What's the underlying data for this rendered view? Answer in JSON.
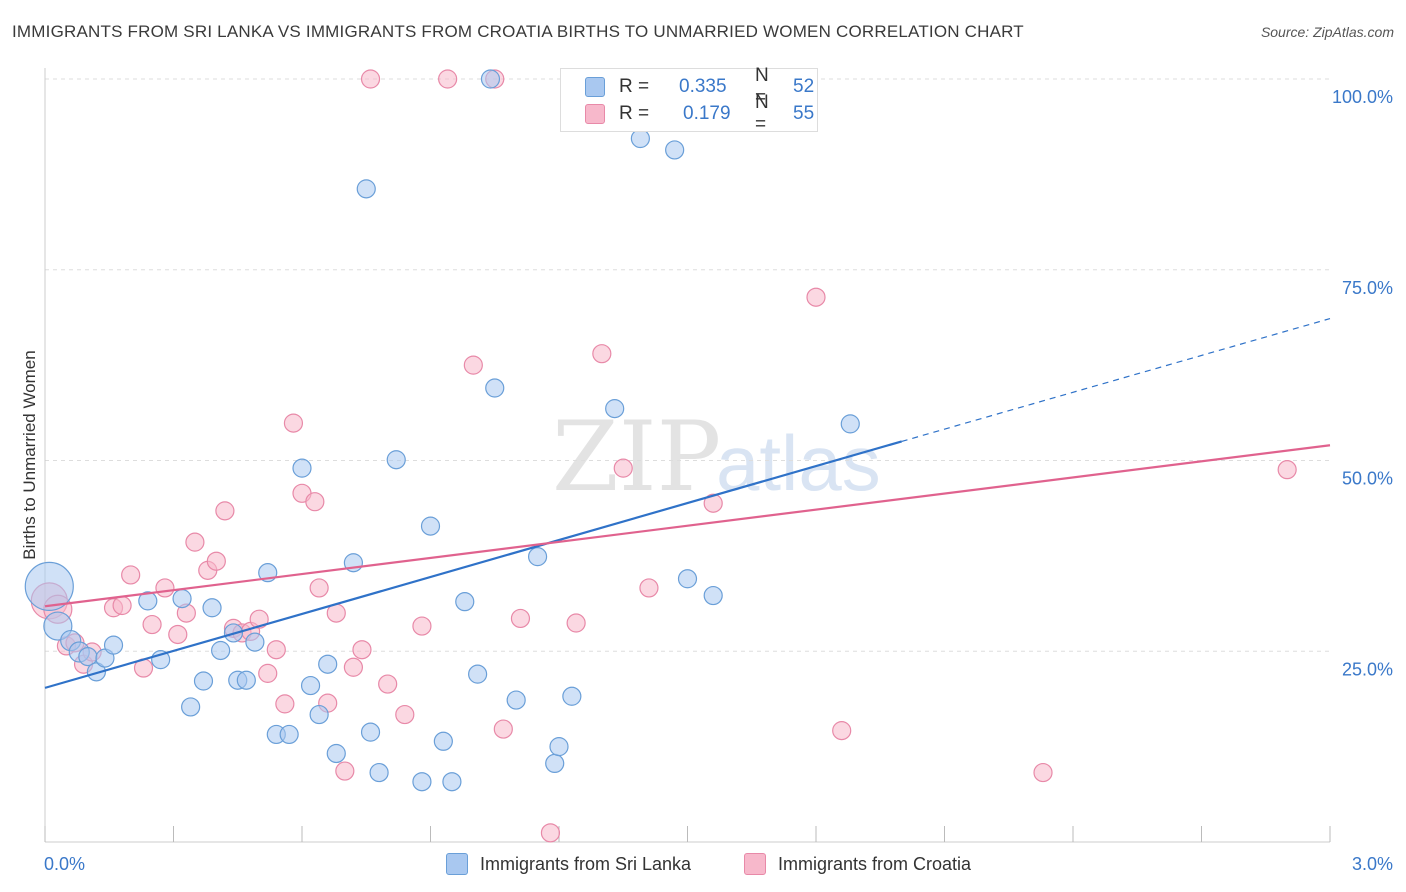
{
  "header": {
    "title": "IMMIGRANTS FROM SRI LANKA VS IMMIGRANTS FROM CROATIA BIRTHS TO UNMARRIED WOMEN CORRELATION CHART",
    "source": "Source: ZipAtlas.com"
  },
  "watermark": {
    "zip": "ZIP",
    "atlas": "atlas"
  },
  "legend": {
    "r_label": "R =",
    "n_label": "N =",
    "rows": [
      {
        "r": "0.335",
        "n": "52",
        "color": "#a9c8f0"
      },
      {
        "r": "0.179",
        "n": "55",
        "color": "#f7b8cb"
      }
    ]
  },
  "bottom_legend": {
    "sri_lanka": "Immigrants from Sri Lanka",
    "croatia": "Immigrants from Croatia"
  },
  "colors": {
    "sri_lanka_fill": "#a9c8f0",
    "sri_lanka_stroke": "#6a9fd8",
    "sri_lanka_line": "#2f72c8",
    "croatia_fill": "#f7b8cb",
    "croatia_stroke": "#e889a8",
    "croatia_line": "#e0628e",
    "axis_text": "#3a78c9",
    "grid": "#dddddd"
  },
  "chart_data": {
    "type": "scatter",
    "title": "IMMIGRANTS FROM SRI LANKA VS IMMIGRANTS FROM CROATIA BIRTHS TO UNMARRIED WOMEN CORRELATION CHART",
    "xlabel": "",
    "ylabel": "Births to Unmarried Women",
    "x_tick_labels": [
      "0.0%",
      "3.0%"
    ],
    "y_tick_labels": [
      "25.0%",
      "50.0%",
      "75.0%",
      "100.0%"
    ],
    "xlim": [
      0,
      3.0
    ],
    "ylim": [
      0,
      100
    ],
    "grid": true,
    "legend_position": "top-center",
    "series": [
      {
        "name": "Immigrants from Sri Lanka",
        "r": 0.335,
        "n": 52,
        "trend": {
          "x0": 0.0,
          "y0": 20.2,
          "x1": 2.0,
          "y1": 52.5,
          "dash_to_x": 3.0,
          "dash_to_y": 68.6
        },
        "points": [
          [
            0.01,
            33.5,
            24
          ],
          [
            0.03,
            28.3,
            14
          ],
          [
            0.06,
            26.4,
            10
          ],
          [
            0.08,
            24.9,
            10
          ],
          [
            0.1,
            24.3,
            9
          ],
          [
            0.12,
            22.3,
            9
          ],
          [
            0.14,
            24.1,
            9
          ],
          [
            0.16,
            25.8,
            9
          ],
          [
            0.24,
            31.6,
            9
          ],
          [
            0.27,
            23.9,
            9
          ],
          [
            0.32,
            31.9,
            9
          ],
          [
            0.34,
            17.7,
            9
          ],
          [
            0.37,
            21.1,
            9
          ],
          [
            0.39,
            30.7,
            9
          ],
          [
            0.41,
            25.1,
            9
          ],
          [
            0.44,
            27.4,
            9
          ],
          [
            0.45,
            21.2,
            9
          ],
          [
            0.47,
            21.2,
            9
          ],
          [
            0.49,
            26.2,
            9
          ],
          [
            0.52,
            35.3,
            9
          ],
          [
            0.54,
            14.1,
            9
          ],
          [
            0.57,
            14.1,
            9
          ],
          [
            0.6,
            49.0,
            9
          ],
          [
            0.62,
            20.5,
            9
          ],
          [
            0.64,
            16.7,
            9
          ],
          [
            0.66,
            23.3,
            9
          ],
          [
            0.68,
            11.6,
            9
          ],
          [
            0.72,
            36.6,
            9
          ],
          [
            0.75,
            85.6,
            9
          ],
          [
            0.76,
            14.4,
            9
          ],
          [
            0.78,
            9.1,
            9
          ],
          [
            0.82,
            50.1,
            9
          ],
          [
            0.88,
            7.9,
            9
          ],
          [
            0.9,
            41.4,
            9
          ],
          [
            0.93,
            13.2,
            9
          ],
          [
            0.95,
            7.9,
            9
          ],
          [
            0.98,
            31.5,
            9
          ],
          [
            1.01,
            22.0,
            9
          ],
          [
            1.04,
            100.0,
            9
          ],
          [
            1.05,
            59.5,
            9
          ],
          [
            1.1,
            18.6,
            9
          ],
          [
            1.15,
            37.4,
            9
          ],
          [
            1.19,
            10.3,
            9
          ],
          [
            1.2,
            12.5,
            9
          ],
          [
            1.23,
            19.1,
            9
          ],
          [
            1.33,
            56.8,
            9
          ],
          [
            1.39,
            92.2,
            9
          ],
          [
            1.47,
            90.7,
            9
          ],
          [
            1.5,
            34.5,
            9
          ],
          [
            1.56,
            32.3,
            9
          ],
          [
            1.88,
            54.8,
            9
          ]
        ]
      },
      {
        "name": "Immigrants from Croatia",
        "r": 0.179,
        "n": 55,
        "trend": {
          "x0": 0.0,
          "y0": 30.9,
          "x1": 3.0,
          "y1": 52.0
        },
        "points": [
          [
            0.01,
            31.6,
            18
          ],
          [
            0.03,
            30.5,
            14
          ],
          [
            0.05,
            25.7,
            9
          ],
          [
            0.07,
            26.1,
            9
          ],
          [
            0.09,
            23.3,
            9
          ],
          [
            0.11,
            24.9,
            9
          ],
          [
            0.16,
            30.7,
            9
          ],
          [
            0.18,
            31.0,
            9
          ],
          [
            0.2,
            35.0,
            9
          ],
          [
            0.23,
            22.8,
            9
          ],
          [
            0.25,
            28.5,
            9
          ],
          [
            0.28,
            33.3,
            9
          ],
          [
            0.31,
            27.2,
            9
          ],
          [
            0.33,
            30.0,
            9
          ],
          [
            0.35,
            39.3,
            9
          ],
          [
            0.38,
            35.6,
            9
          ],
          [
            0.4,
            36.8,
            9
          ],
          [
            0.42,
            43.4,
            9
          ],
          [
            0.44,
            28.0,
            9
          ],
          [
            0.46,
            27.4,
            9
          ],
          [
            0.48,
            27.6,
            9
          ],
          [
            0.5,
            29.2,
            9
          ],
          [
            0.52,
            22.1,
            9
          ],
          [
            0.54,
            25.2,
            9
          ],
          [
            0.56,
            18.1,
            9
          ],
          [
            0.58,
            54.9,
            9
          ],
          [
            0.6,
            45.7,
            9
          ],
          [
            0.63,
            44.6,
            9
          ],
          [
            0.64,
            33.3,
            9
          ],
          [
            0.66,
            18.2,
            9
          ],
          [
            0.68,
            30.0,
            9
          ],
          [
            0.7,
            9.3,
            9
          ],
          [
            0.72,
            22.9,
            9
          ],
          [
            0.74,
            25.2,
            9
          ],
          [
            0.76,
            100.0,
            9
          ],
          [
            0.8,
            20.7,
            9
          ],
          [
            0.84,
            16.7,
            9
          ],
          [
            0.88,
            28.3,
            9
          ],
          [
            0.94,
            100.0,
            9
          ],
          [
            1.0,
            62.5,
            9
          ],
          [
            1.05,
            100.0,
            9
          ],
          [
            1.07,
            14.8,
            9
          ],
          [
            1.11,
            29.3,
            9
          ],
          [
            1.18,
            1.2,
            9
          ],
          [
            1.24,
            28.7,
            9
          ],
          [
            1.3,
            64.0,
            9
          ],
          [
            1.35,
            49.0,
            9
          ],
          [
            1.41,
            33.3,
            9
          ],
          [
            1.56,
            44.4,
            9
          ],
          [
            1.8,
            71.4,
            9
          ],
          [
            1.86,
            14.6,
            9
          ],
          [
            2.33,
            9.1,
            9
          ],
          [
            2.9,
            48.8,
            9
          ]
        ]
      }
    ]
  }
}
